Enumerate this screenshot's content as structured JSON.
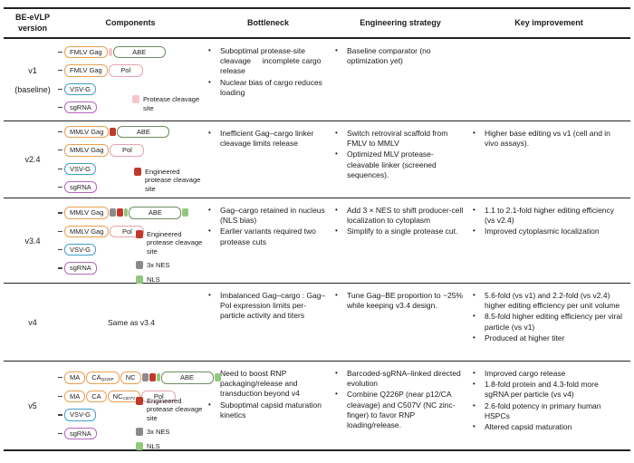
{
  "columns": [
    "BE-eVLP version",
    "Components",
    "Bottleneck",
    "Engineering strategy",
    "Key improvement"
  ],
  "glyphs": {
    "bullet": "•"
  },
  "colors": {
    "gag_outline": "#E8A050",
    "abe_outline": "#6C8E5E",
    "pol_outline": "#E5A3AE",
    "vsvg_outline": "#3FA0CE",
    "sgrna_outline": "#B565BE",
    "protease_site": "#F4C6CC",
    "engineered_site": "#C0392B",
    "nes": "#8A8A8E",
    "nls": "#92C87E"
  },
  "labels": {
    "fmlv_gag": "FMLV Gag",
    "mmlv_gag": "MMLV Gag",
    "abe": "ABE",
    "pol": "Pol",
    "vsvg": "VSV-G",
    "sgrna": "sgRNA",
    "ma": "MA",
    "ca": "CA",
    "nc": "NC",
    "ca_sub": "Q226P",
    "nc_sub": "C507V",
    "same_as": "Same as v3.4"
  },
  "legend": {
    "protease": "Protease cleavage site",
    "engineered": "Engineered protease cleavage site",
    "nes": "3x NES",
    "nls": "NLS"
  },
  "rows": [
    {
      "version": "v1",
      "version_note": "(baseline)",
      "bottleneck": [
        "Suboptimal protease-site cleavage  incomplete cargo release",
        "Nuclear bias of cargo reduces loading"
      ],
      "strategy": [
        "Baseline comparator (no optimization yet)"
      ],
      "improvement": []
    },
    {
      "version": "v2.4",
      "bottleneck": [
        "Inefficient Gag–cargo linker cleavage limits release"
      ],
      "strategy": [
        "Switch retroviral scaffold from FMLV to MMLV",
        "Optimized MLV protease-cleavable linker (screened sequences)."
      ],
      "improvement": [
        "Higher base editing vs v1 (cell and in vivo assays)."
      ]
    },
    {
      "version": "v3.4",
      "bottleneck": [
        "Gag–cargo retained in nucleus (NLS bias)",
        "Earlier variants required two protease cuts"
      ],
      "strategy": [
        "Add 3 × NES to shift producer-cell localization to cytoplasm",
        "Simplify to a single protease cut."
      ],
      "improvement": [
        "1.1 to 2.1-fold higher editing efficiency (vs v2.4)",
        "Improved cytoplasmic localization"
      ]
    },
    {
      "version": "v4",
      "bottleneck": [
        "Imbalanced Gag–cargo : Gag–Pol expression limits per-particle activity and titers"
      ],
      "strategy": [
        "Tune Gag–BE proportion to ~25% while keeping v3.4 design."
      ],
      "improvement": [
        "5.6-fold (vs v1) and 2.2-fold (vs v2.4) higher editing efficiency per unit volume",
        "8.5-fold higher editing efficiency per viral particle (vs v1)",
        "Produced at higher titer"
      ]
    },
    {
      "version": "v5",
      "bottleneck": [
        "Need to boost RNP packaging/release and transduction beyond v4",
        "Suboptimal capsid maturation kinetics"
      ],
      "strategy": [
        "Barcoded-sgRNA–linked directed evolution",
        "Combine Q226P (near p12/CA cleavage) and C507V (NC zinc-finger) to favor RNP loading/release."
      ],
      "improvement": [
        "Improved cargo release",
        "1.8-fold protein and 4.3-fold more sgRNA per particle (vs v4)",
        "2.6-fold potency in primary human HSPCs",
        "Altered capsid maturation"
      ]
    }
  ]
}
